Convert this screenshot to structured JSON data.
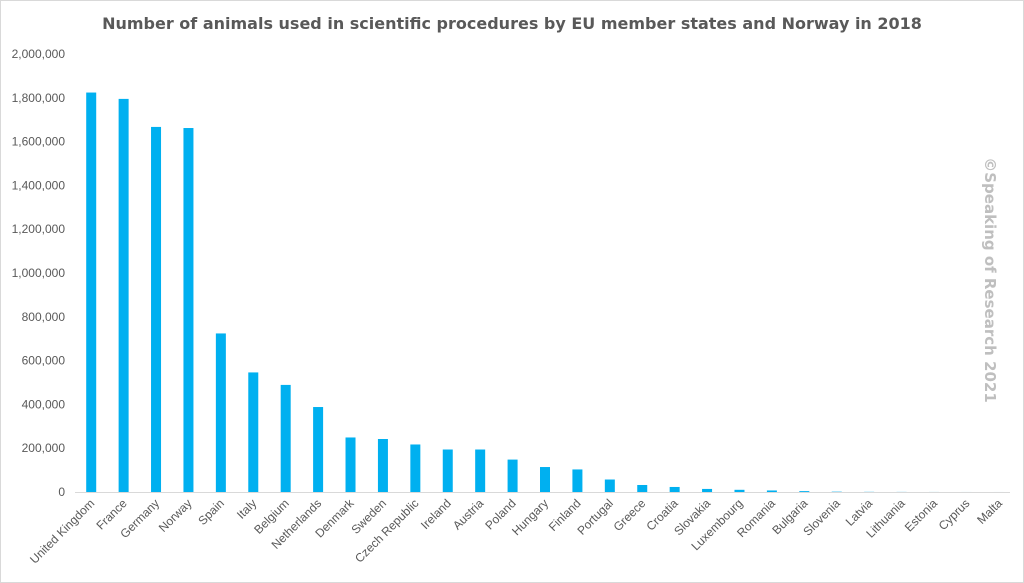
{
  "chart_data": {
    "type": "bar",
    "title": "Number of animals used in scientific procedures by EU member states and Norway in 2018",
    "watermark": "©Speaking of Research 2021",
    "xlabel": "",
    "ylabel": "",
    "ylim": [
      0,
      2000000
    ],
    "y_ticks": [
      0,
      200000,
      400000,
      600000,
      800000,
      1000000,
      1200000,
      1400000,
      1600000,
      1800000,
      2000000
    ],
    "y_tick_labels": [
      "0",
      "200,000",
      "400,000",
      "600,000",
      "800,000",
      "1,000,000",
      "1,200,000",
      "1,400,000",
      "1,600,000",
      "1,800,000",
      "2,000,000"
    ],
    "grid": false,
    "legend": "none",
    "bar_color": "#00B0F0",
    "categories": [
      "United Kingdom",
      "France",
      "Germany",
      "Norway",
      "Spain",
      "Italy",
      "Belgium",
      "Netherlands",
      "Denmark",
      "Sweden",
      "Czech Republic",
      "Ireland",
      "Austria",
      "Poland",
      "Hungary",
      "Finland",
      "Portugal",
      "Greece",
      "Croatia",
      "Slovakia",
      "Luxembourg",
      "Romania",
      "Bulgaria",
      "Slovenia",
      "Latvia",
      "Lithuania",
      "Estonia",
      "Cyprus",
      "Malta"
    ],
    "values": [
      1824000,
      1795000,
      1667000,
      1662000,
      724000,
      546000,
      489000,
      388000,
      249000,
      242000,
      217000,
      194000,
      194000,
      148000,
      114000,
      103000,
      57000,
      32000,
      23000,
      14000,
      10000,
      7000,
      4000,
      1500,
      700,
      400,
      200,
      100,
      50
    ]
  }
}
